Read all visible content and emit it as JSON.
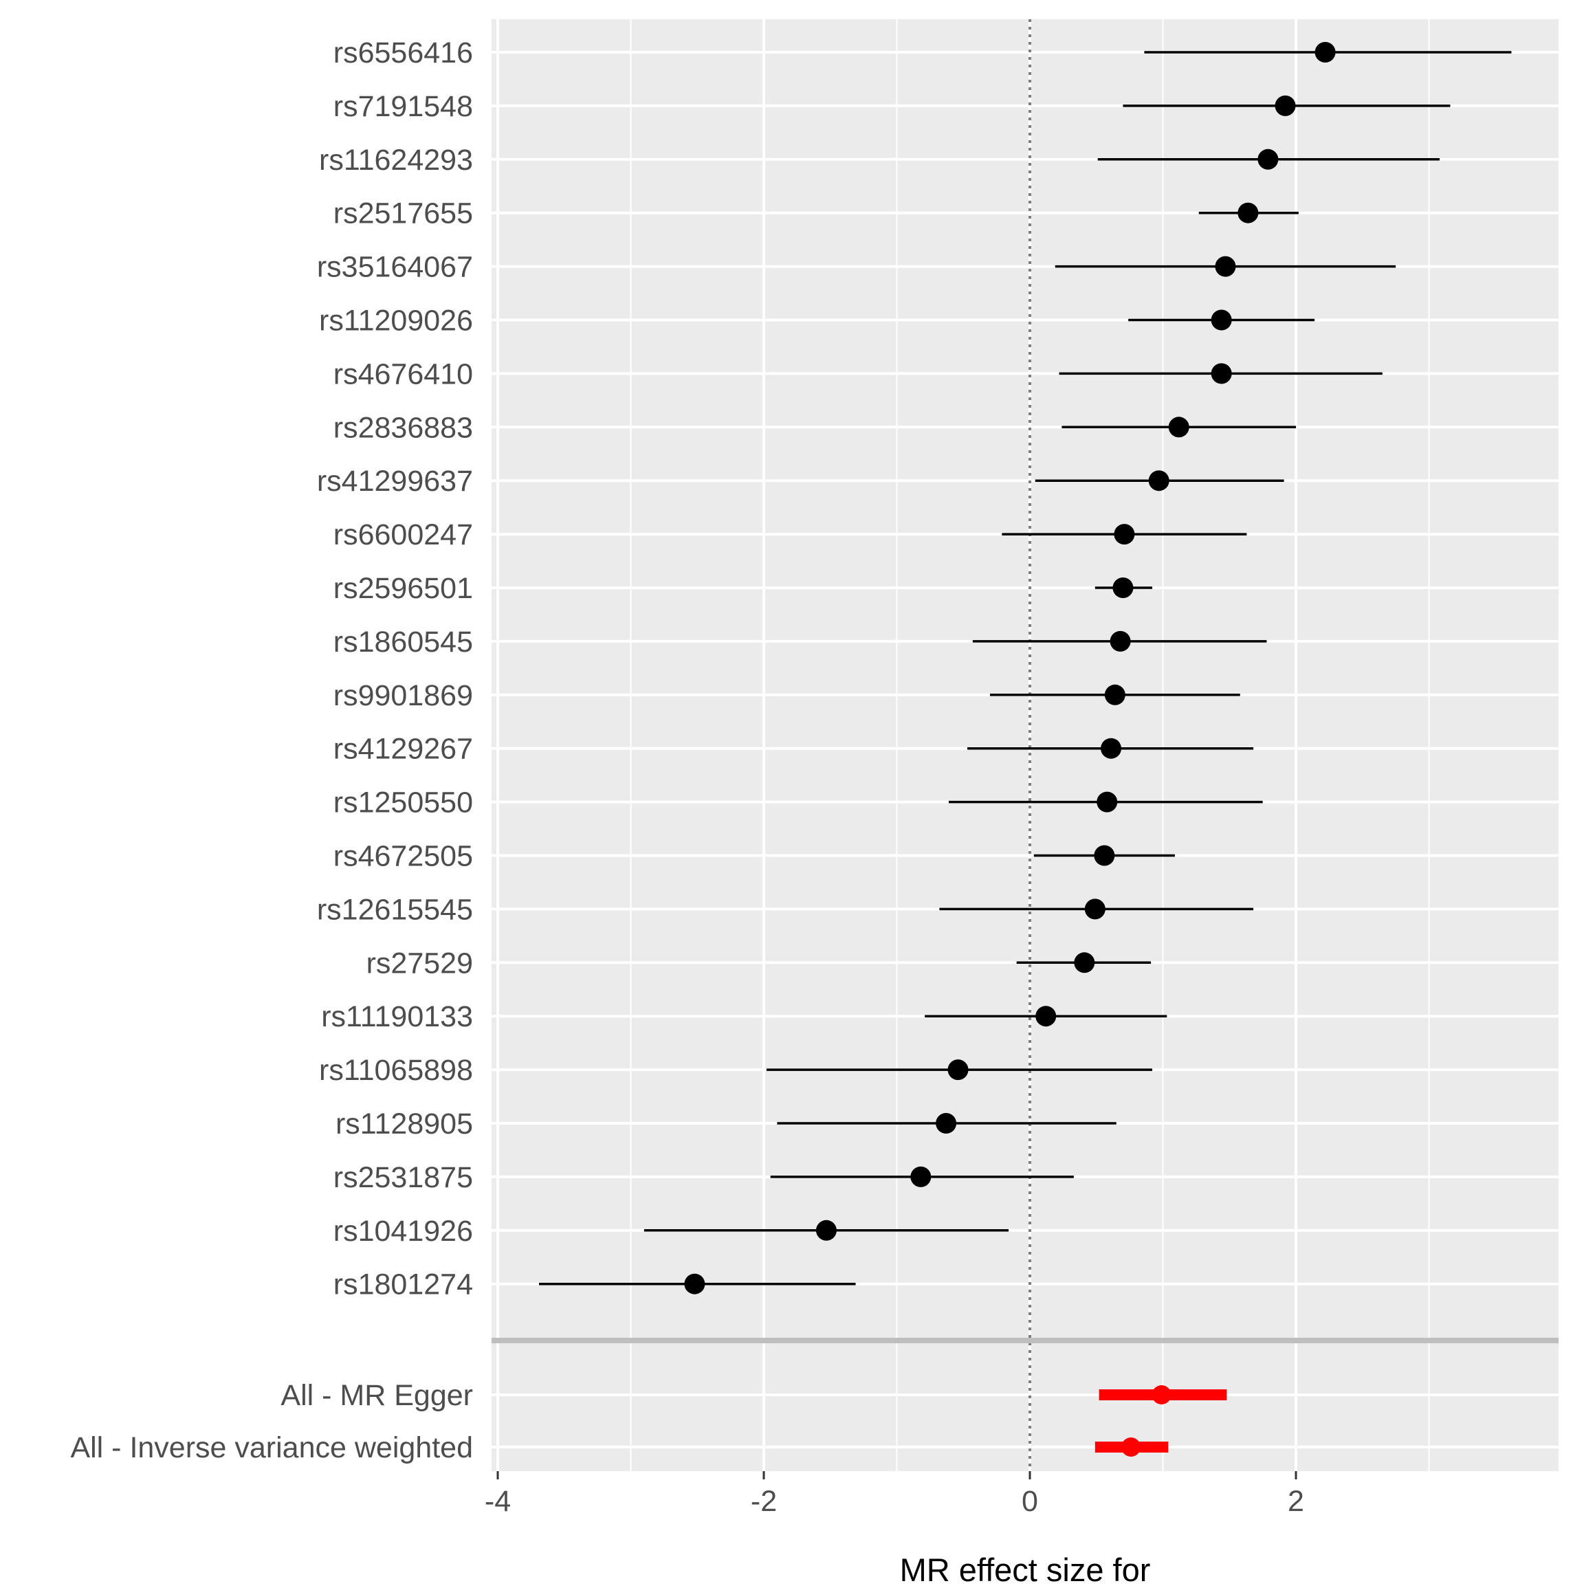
{
  "chart_data": {
    "type": "forest",
    "xlabel": "MR effect size for",
    "xlim": [
      -4.0,
      4.0
    ],
    "x_ticks": [
      -4,
      -2,
      0,
      2
    ],
    "x_tick_labels": [
      "-4",
      "-2",
      "0",
      "2"
    ],
    "reference_line": 0,
    "grid": true,
    "snps": [
      {
        "label": "rs6556416",
        "estimate": 2.22,
        "lower": 0.86,
        "upper": 3.62
      },
      {
        "label": "rs7191548",
        "estimate": 1.92,
        "lower": 0.7,
        "upper": 3.16
      },
      {
        "label": "rs11624293",
        "estimate": 1.79,
        "lower": 0.51,
        "upper": 3.08
      },
      {
        "label": "rs2517655",
        "estimate": 1.64,
        "lower": 1.27,
        "upper": 2.02
      },
      {
        "label": "rs35164067",
        "estimate": 1.47,
        "lower": 0.19,
        "upper": 2.75
      },
      {
        "label": "rs11209026",
        "estimate": 1.44,
        "lower": 0.74,
        "upper": 2.14
      },
      {
        "label": "rs4676410",
        "estimate": 1.44,
        "lower": 0.22,
        "upper": 2.65
      },
      {
        "label": "rs2836883",
        "estimate": 1.12,
        "lower": 0.24,
        "upper": 2.0
      },
      {
        "label": "rs41299637",
        "estimate": 0.97,
        "lower": 0.04,
        "upper": 1.91
      },
      {
        "label": "rs6600247",
        "estimate": 0.71,
        "lower": -0.21,
        "upper": 1.63
      },
      {
        "label": "rs2596501",
        "estimate": 0.7,
        "lower": 0.49,
        "upper": 0.92
      },
      {
        "label": "rs1860545",
        "estimate": 0.68,
        "lower": -0.43,
        "upper": 1.78
      },
      {
        "label": "rs9901869",
        "estimate": 0.64,
        "lower": -0.3,
        "upper": 1.58
      },
      {
        "label": "rs4129267",
        "estimate": 0.61,
        "lower": -0.47,
        "upper": 1.68
      },
      {
        "label": "rs1250550",
        "estimate": 0.58,
        "lower": -0.61,
        "upper": 1.75
      },
      {
        "label": "rs4672505",
        "estimate": 0.56,
        "lower": 0.03,
        "upper": 1.09
      },
      {
        "label": "rs12615545",
        "estimate": 0.49,
        "lower": -0.68,
        "upper": 1.68
      },
      {
        "label": "rs27529",
        "estimate": 0.41,
        "lower": -0.1,
        "upper": 0.91
      },
      {
        "label": "rs11190133",
        "estimate": 0.12,
        "lower": -0.79,
        "upper": 1.03
      },
      {
        "label": "rs11065898",
        "estimate": -0.54,
        "lower": -1.98,
        "upper": 0.92
      },
      {
        "label": "rs1128905",
        "estimate": -0.63,
        "lower": -1.9,
        "upper": 0.65
      },
      {
        "label": "rs2531875",
        "estimate": -0.82,
        "lower": -1.95,
        "upper": 0.33
      },
      {
        "label": "rs1041926",
        "estimate": -1.53,
        "lower": -2.9,
        "upper": -0.16
      },
      {
        "label": "rs1801274",
        "estimate": -2.52,
        "lower": -3.69,
        "upper": -1.31
      }
    ],
    "summaries": [
      {
        "label": "All - MR Egger",
        "estimate": 0.99,
        "lower": 0.52,
        "upper": 1.48
      },
      {
        "label": "All - Inverse variance weighted",
        "estimate": 0.76,
        "lower": 0.49,
        "upper": 1.04
      }
    ],
    "colors": {
      "panel_bg": "#ebebeb",
      "grid": "#ffffff",
      "snp": "#000000",
      "summary": "#ff0000",
      "separator": "#bebebe",
      "reference_line": "#7f7f7f"
    }
  }
}
